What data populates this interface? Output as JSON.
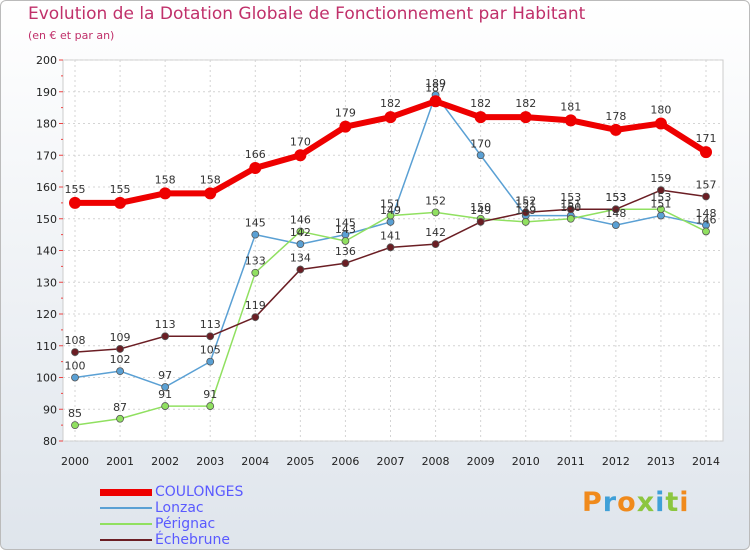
{
  "title": "Evolution de la Dotation Globale de Fonctionnement par Habitant",
  "subtitle": "(en € et par an)",
  "logo_text": "Proxiti",
  "chart_data": {
    "type": "line",
    "title": "Evolution de la Dotation Globale de Fonctionnement par Habitant",
    "subtitle": "(en € et par an)",
    "xlabel": "",
    "ylabel": "",
    "x": [
      "2000",
      "2001",
      "2002",
      "2003",
      "2004",
      "2005",
      "2006",
      "2007",
      "2008",
      "2009",
      "2010",
      "2011",
      "2012",
      "2013",
      "2014"
    ],
    "ylim": [
      80,
      200
    ],
    "yticks": [
      "80",
      "90",
      "100",
      "110",
      "120",
      "130",
      "140",
      "150",
      "160",
      "170",
      "180",
      "190",
      "200"
    ],
    "grid": true,
    "legend_position": "bottom-left",
    "series": [
      {
        "name": "COULONGES",
        "color": "#ee0000",
        "width": "thick",
        "values": [
          155,
          155,
          158,
          158,
          166,
          170,
          179,
          182,
          187,
          182,
          182,
          181,
          178,
          180,
          171
        ],
        "labels": [
          "155",
          "155",
          "158",
          "158",
          "166",
          "170",
          "179",
          "182",
          "187",
          "182",
          "182",
          "181",
          "178",
          "180",
          "171"
        ]
      },
      {
        "name": "Lonzac",
        "color": "#5aa0d4",
        "width": "thin",
        "values": [
          100,
          102,
          97,
          105,
          145,
          142,
          145,
          149,
          189,
          170,
          151,
          151,
          148,
          151,
          148
        ],
        "labels": [
          "100",
          "102",
          "97",
          "105",
          "145",
          "142",
          "145",
          "149",
          "189",
          "170",
          "151",
          "151",
          "148",
          "151",
          "148"
        ]
      },
      {
        "name": "Pérignac",
        "color": "#90e060",
        "width": "thin",
        "values": [
          85,
          87,
          91,
          91,
          133,
          146,
          143,
          151,
          152,
          150,
          149,
          150,
          153,
          153,
          146
        ],
        "labels": [
          "85",
          "87",
          "91",
          "91",
          "133",
          "146",
          "143",
          "151",
          "152",
          "150",
          "149",
          "150",
          "153",
          "153",
          "146"
        ]
      },
      {
        "name": "Échebrune",
        "color": "#6b1e24",
        "width": "thin",
        "values": [
          108,
          109,
          113,
          113,
          119,
          134,
          136,
          141,
          142,
          149,
          152,
          153,
          153,
          159,
          157
        ],
        "labels": [
          "108",
          "109",
          "113",
          "113",
          "119",
          "134",
          "136",
          "141",
          "142",
          "149",
          "152",
          "153",
          "153",
          "159",
          "157"
        ]
      }
    ]
  }
}
